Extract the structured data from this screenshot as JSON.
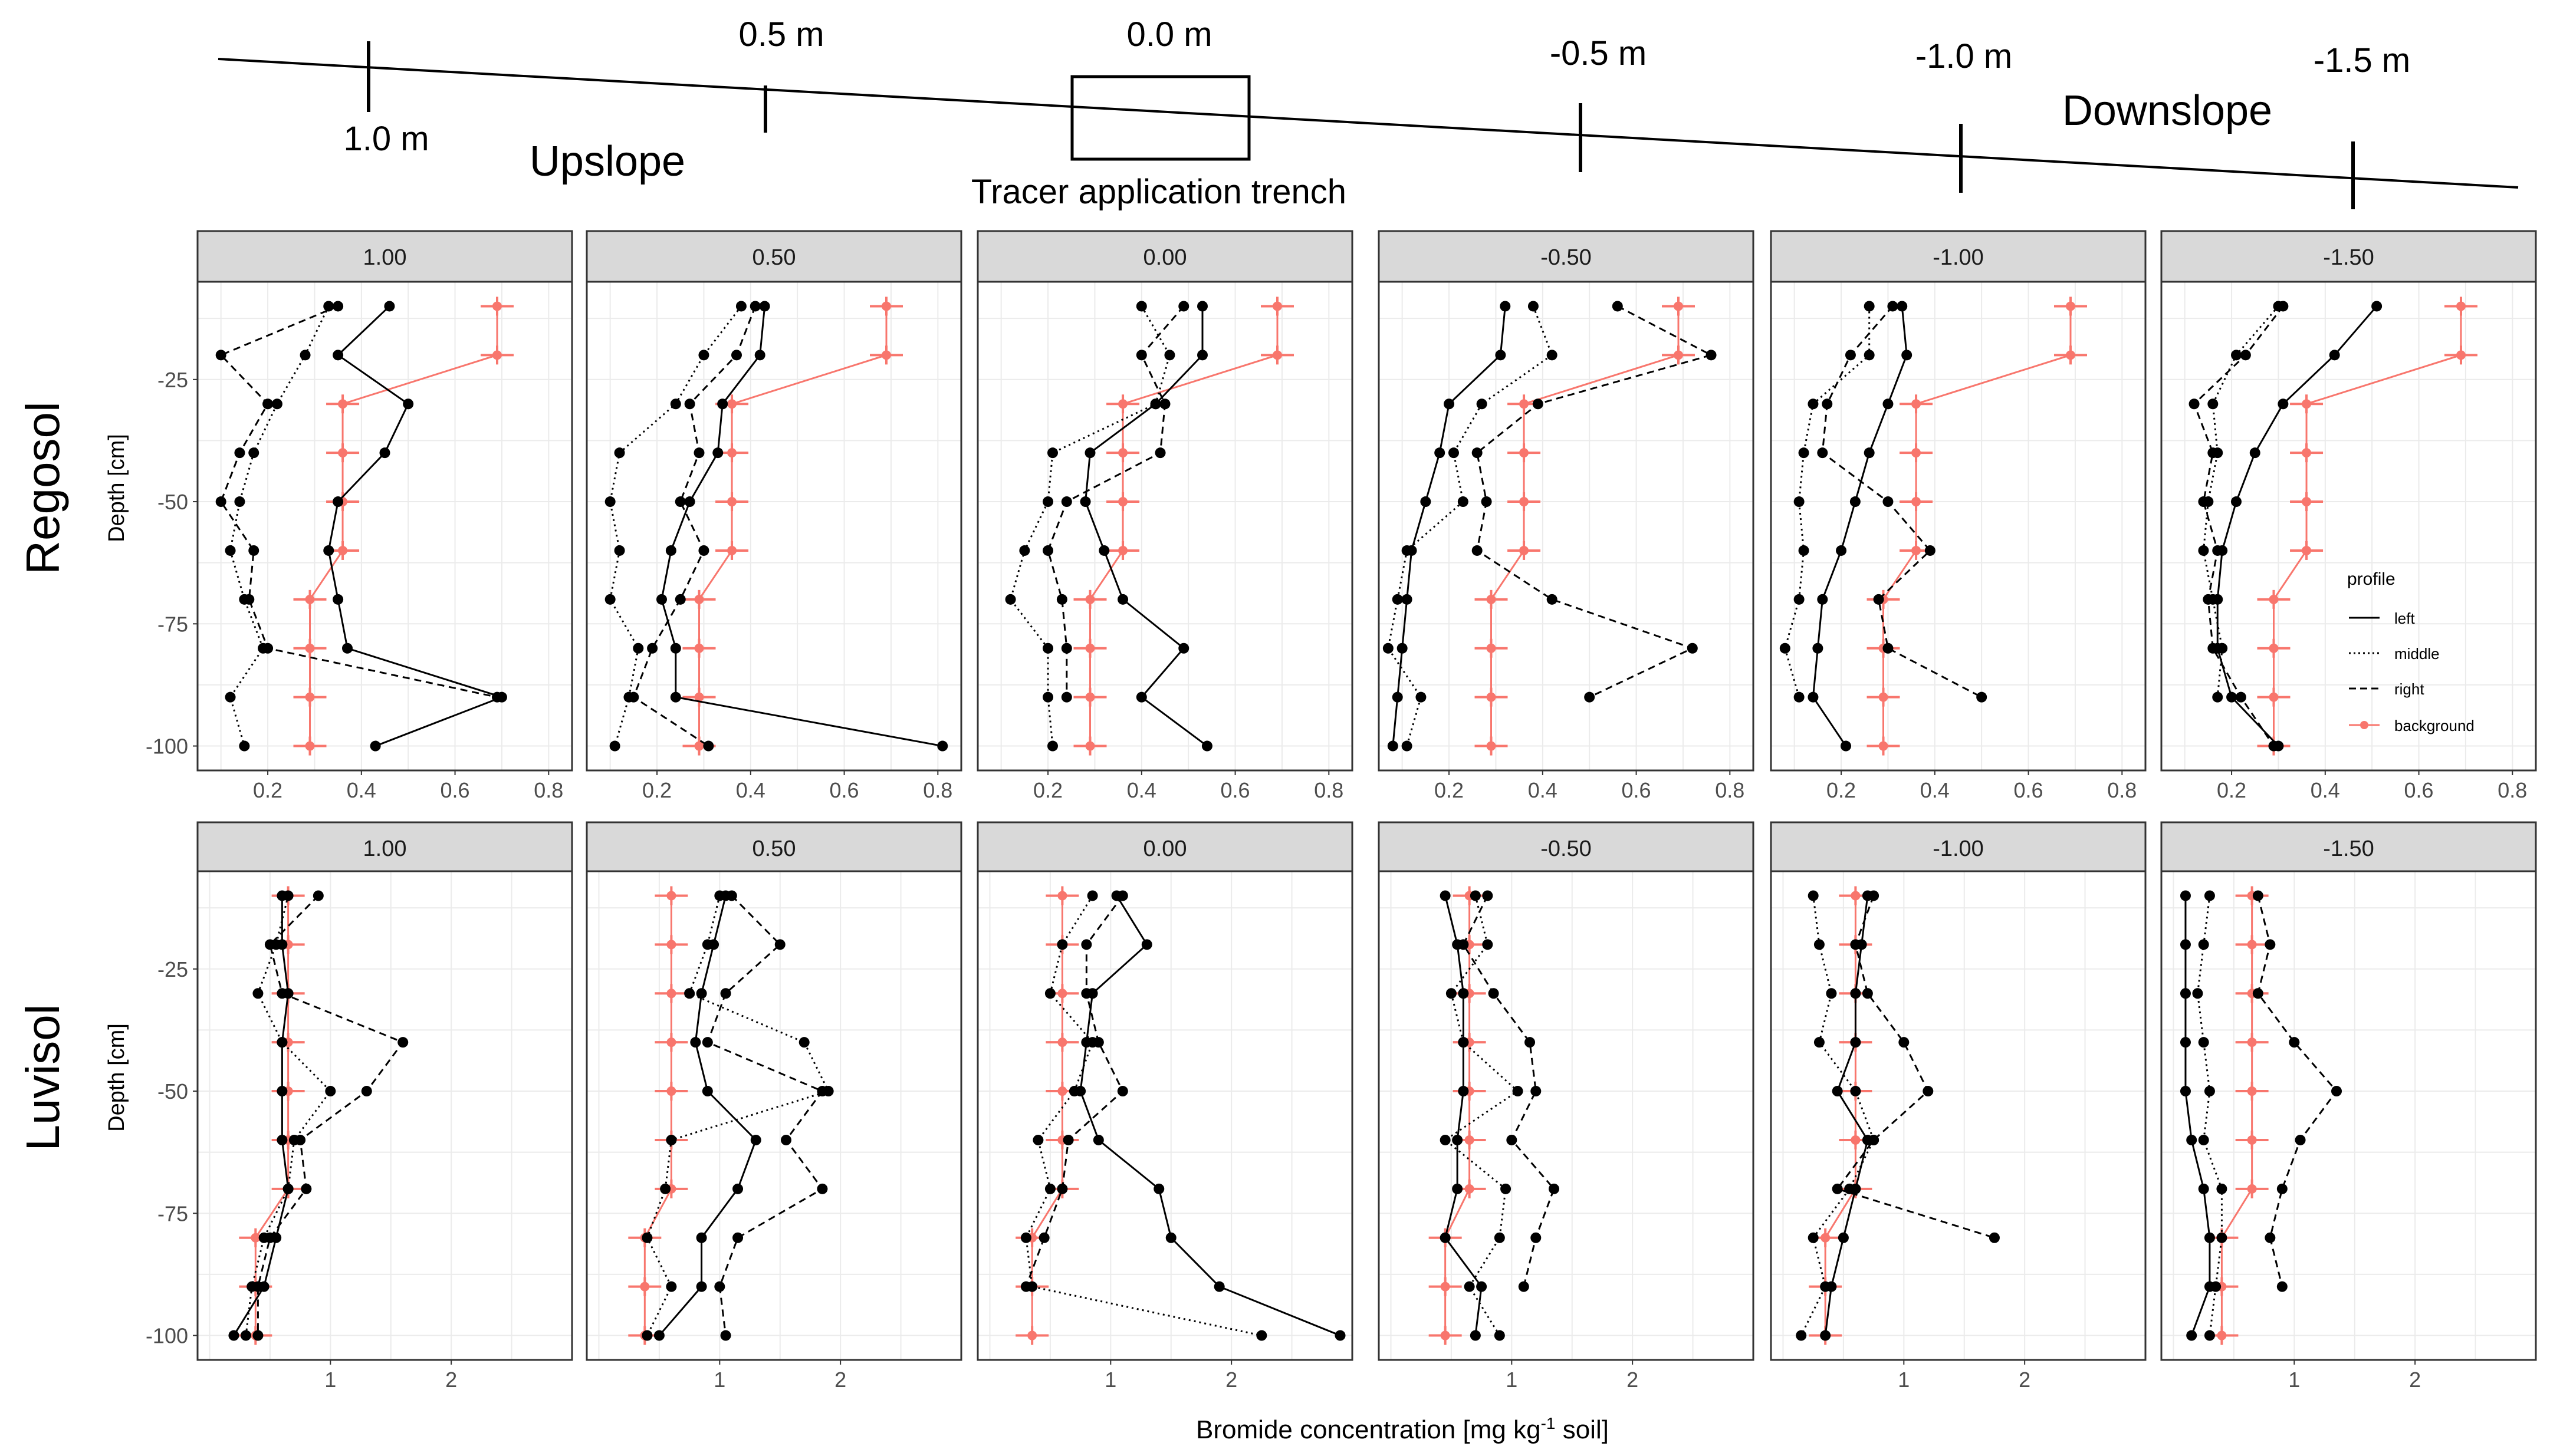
{
  "header": {
    "positions": [
      "1.0 m",
      "0.5 m",
      "0.0 m",
      "-0.5 m",
      "-1.0 m",
      "-1.5 m"
    ],
    "upslope": "Upslope",
    "downslope": "Downslope",
    "trench": "Tracer application trench"
  },
  "xlabel_parts": {
    "pre": "Bromide concentration [mg kg",
    "sup": "-1",
    "post": " soil]"
  },
  "ylabel": "Depth [cm]",
  "legend": {
    "title": "profile",
    "entries": [
      "left",
      "middle",
      "right",
      "background"
    ]
  },
  "colors": {
    "profile": "#000000",
    "background": "#f8766d",
    "strip": "#d9d9d9",
    "grid": "#ebebeb",
    "axis_text": "#4d4d4d"
  },
  "chart_data": [
    {
      "type": "line",
      "soil": "Regosol",
      "xlim": [
        0.05,
        0.85
      ],
      "xticks": [
        0.2,
        0.4,
        0.6,
        0.8
      ],
      "xtick_labels": [
        "0.2",
        "0.4",
        "0.6",
        "0.8"
      ],
      "ylim": [
        -105,
        -5
      ],
      "yticks": [
        -25,
        -50,
        -75,
        -100
      ],
      "ytick_labels": [
        "-25",
        "-50",
        "-75",
        "-100"
      ],
      "depths": [
        -10,
        -20,
        -30,
        -40,
        -50,
        -60,
        -70,
        -80,
        -90,
        -100
      ],
      "panels": [
        {
          "label": "1.00",
          "left": [
            0.46,
            0.35,
            0.5,
            0.45,
            0.35,
            0.33,
            0.35,
            0.37,
            0.7,
            0.43
          ],
          "middle": [
            0.33,
            0.28,
            0.22,
            0.17,
            0.14,
            0.12,
            0.15,
            0.19,
            0.12,
            0.15
          ],
          "right": [
            0.35,
            0.1,
            0.2,
            0.14,
            0.1,
            0.17,
            0.16,
            0.2,
            0.69,
            null
          ],
          "background": [
            0.69,
            0.69,
            0.36,
            0.36,
            0.36,
            0.36,
            0.29,
            0.29,
            0.29,
            0.29
          ]
        },
        {
          "label": "0.50",
          "left": [
            0.43,
            0.42,
            0.34,
            0.33,
            0.27,
            0.23,
            0.21,
            0.24,
            0.24,
            0.81
          ],
          "middle": [
            0.38,
            0.3,
            0.24,
            0.12,
            0.1,
            0.12,
            0.1,
            0.16,
            0.14,
            0.11
          ],
          "right": [
            0.41,
            0.37,
            0.27,
            0.29,
            0.25,
            0.3,
            0.25,
            0.19,
            0.15,
            0.31
          ],
          "background": [
            0.69,
            0.69,
            0.36,
            0.36,
            0.36,
            0.36,
            0.29,
            0.29,
            0.29,
            0.29
          ]
        },
        {
          "label": "0.00",
          "left": [
            0.53,
            0.53,
            0.43,
            0.29,
            0.28,
            0.32,
            0.36,
            0.49,
            0.4,
            0.54
          ],
          "middle": [
            0.4,
            0.46,
            0.43,
            0.21,
            0.2,
            0.15,
            0.12,
            0.2,
            0.2,
            0.21
          ],
          "right": [
            0.49,
            0.4,
            0.45,
            0.44,
            0.24,
            0.2,
            0.23,
            0.24,
            0.24,
            null
          ],
          "background": [
            0.69,
            0.69,
            0.36,
            0.36,
            0.36,
            0.36,
            0.29,
            0.29,
            0.29,
            0.29
          ]
        },
        {
          "label": "-0.50",
          "left": [
            0.32,
            0.31,
            0.2,
            0.18,
            0.15,
            0.12,
            0.11,
            0.1,
            0.09,
            0.08
          ],
          "middle": [
            0.38,
            0.42,
            0.27,
            0.21,
            0.23,
            0.11,
            0.09,
            0.07,
            0.14,
            0.11
          ],
          "right": [
            0.56,
            0.76,
            0.39,
            0.26,
            0.28,
            0.26,
            0.42,
            0.72,
            0.5,
            null
          ],
          "background": [
            0.69,
            0.69,
            0.36,
            0.36,
            0.36,
            0.36,
            0.29,
            0.29,
            0.29,
            0.29
          ]
        },
        {
          "label": "-1.00",
          "left": [
            0.33,
            0.34,
            0.3,
            0.26,
            0.23,
            0.2,
            0.16,
            0.15,
            0.14,
            0.21
          ],
          "middle": [
            0.26,
            0.26,
            0.14,
            0.12,
            0.11,
            0.12,
            0.11,
            0.08,
            0.11,
            null
          ],
          "right": [
            0.31,
            0.22,
            0.17,
            0.16,
            0.3,
            0.39,
            0.28,
            0.3,
            0.5,
            null
          ],
          "background": [
            0.69,
            0.69,
            0.36,
            0.36,
            0.36,
            0.36,
            0.29,
            0.29,
            0.29,
            0.29
          ]
        },
        {
          "label": "-1.50",
          "left": [
            0.51,
            0.42,
            0.31,
            0.25,
            0.21,
            0.18,
            0.17,
            0.17,
            0.2,
            0.3
          ],
          "middle": [
            0.3,
            0.21,
            0.16,
            0.17,
            0.15,
            0.14,
            0.16,
            0.18,
            0.17,
            null
          ],
          "right": [
            0.31,
            0.23,
            0.12,
            0.16,
            0.14,
            0.17,
            0.15,
            0.16,
            0.22,
            0.29
          ],
          "background": [
            0.69,
            0.69,
            0.36,
            0.36,
            0.36,
            0.36,
            0.29,
            0.29,
            0.29,
            0.29
          ]
        }
      ]
    },
    {
      "type": "line",
      "soil": "Luvisol",
      "xlim": [
        -0.1,
        3.0
      ],
      "xticks": [
        1,
        2
      ],
      "xtick_labels": [
        "1",
        "2"
      ],
      "ylim": [
        -105,
        -5
      ],
      "yticks": [
        -25,
        -50,
        -75,
        -100
      ],
      "ytick_labels": [
        "-25",
        "-50",
        "-75",
        "-100"
      ],
      "depths": [
        -10,
        -20,
        -30,
        -40,
        -50,
        -60,
        -70,
        -80,
        -90,
        -100
      ],
      "panels": [
        {
          "label": "1.00",
          "left": [
            0.6,
            0.6,
            0.65,
            0.6,
            0.6,
            0.6,
            0.65,
            0.55,
            0.45,
            0.2
          ],
          "middle": [
            0.65,
            0.55,
            0.4,
            0.6,
            1.0,
            0.7,
            0.65,
            0.45,
            0.35,
            0.3
          ],
          "right": [
            0.9,
            0.5,
            0.6,
            1.6,
            1.3,
            0.75,
            0.8,
            0.5,
            0.4,
            0.4
          ],
          "background": [
            0.65,
            0.65,
            0.65,
            0.65,
            0.65,
            0.65,
            0.65,
            0.38,
            0.38,
            0.38
          ]
        },
        {
          "label": "0.50",
          "left": [
            1.05,
            0.95,
            0.85,
            0.8,
            0.9,
            1.3,
            1.15,
            0.85,
            0.85,
            0.5
          ],
          "middle": [
            1.0,
            0.9,
            0.75,
            1.7,
            1.9,
            0.6,
            0.55,
            0.4,
            0.6,
            0.4
          ],
          "right": [
            1.1,
            1.5,
            1.05,
            0.9,
            1.85,
            1.55,
            1.85,
            1.15,
            1.0,
            1.05
          ],
          "background": [
            0.6,
            0.6,
            0.6,
            0.6,
            0.6,
            0.6,
            0.6,
            0.38,
            0.38,
            0.38
          ]
        },
        {
          "label": "0.00",
          "left": [
            1.05,
            1.3,
            0.85,
            0.8,
            0.75,
            0.9,
            1.4,
            1.5,
            1.9,
            2.9
          ],
          "middle": [
            0.85,
            0.6,
            0.5,
            0.85,
            0.7,
            0.4,
            0.5,
            0.3,
            0.35,
            2.25
          ],
          "right": [
            1.1,
            0.8,
            0.8,
            0.9,
            1.1,
            0.65,
            0.6,
            0.45,
            0.3,
            null
          ],
          "background": [
            0.6,
            0.6,
            0.6,
            0.6,
            0.6,
            0.6,
            0.6,
            0.35,
            0.35,
            0.35
          ]
        },
        {
          "label": "-0.50",
          "left": [
            0.45,
            0.55,
            0.6,
            0.6,
            0.6,
            0.55,
            0.55,
            0.45,
            0.75,
            0.7
          ],
          "middle": [
            0.7,
            0.8,
            0.5,
            0.6,
            1.05,
            0.45,
            0.95,
            0.9,
            0.65,
            0.9
          ],
          "right": [
            0.8,
            0.6,
            0.85,
            1.15,
            1.2,
            1.0,
            1.35,
            1.2,
            1.1,
            null
          ],
          "background": [
            0.65,
            0.65,
            0.65,
            0.65,
            0.65,
            0.65,
            0.65,
            0.45,
            0.45,
            0.45
          ]
        },
        {
          "label": "-1.00",
          "left": [
            0.7,
            0.65,
            0.6,
            0.6,
            0.45,
            0.7,
            0.6,
            0.5,
            0.4,
            0.35
          ],
          "middle": [
            0.25,
            0.3,
            0.4,
            0.3,
            0.6,
            0.75,
            0.55,
            0.25,
            0.35,
            0.15
          ],
          "right": [
            0.75,
            0.6,
            0.7,
            1.0,
            1.2,
            0.75,
            0.45,
            1.75,
            null,
            null
          ],
          "background": [
            0.6,
            0.6,
            0.6,
            0.6,
            0.6,
            0.6,
            0.6,
            0.35,
            0.35,
            0.35
          ]
        },
        {
          "label": "-1.50",
          "left": [
            0.1,
            0.1,
            0.1,
            0.1,
            0.1,
            0.15,
            0.25,
            0.3,
            0.3,
            0.15
          ],
          "middle": [
            0.3,
            0.25,
            0.2,
            0.25,
            0.3,
            0.25,
            0.4,
            0.4,
            0.35,
            0.3
          ],
          "right": [
            0.7,
            0.8,
            0.7,
            1.0,
            1.35,
            1.05,
            0.9,
            0.8,
            0.9,
            null
          ],
          "background": [
            0.65,
            0.65,
            0.65,
            0.65,
            0.65,
            0.65,
            0.65,
            0.4,
            0.4,
            0.4
          ]
        }
      ]
    }
  ]
}
